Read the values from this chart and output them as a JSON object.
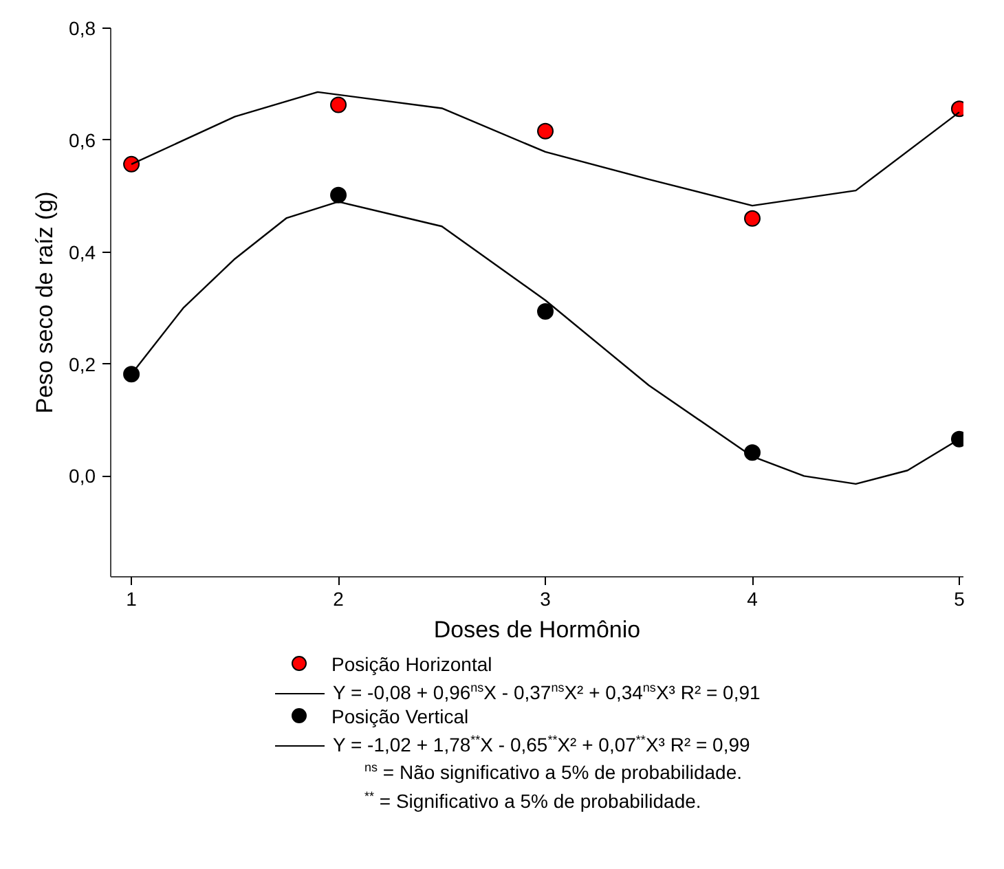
{
  "chart_data": {
    "type": "scatter",
    "xlabel": "Doses de Hormônio",
    "ylabel": "Peso seco de raíz (g)",
    "xlim": [
      0.9,
      5.02
    ],
    "ylim": [
      -0.18,
      0.8
    ],
    "xticks": [
      1,
      2,
      3,
      4,
      5
    ],
    "yticks": [
      {
        "value": 0,
        "label": "0,0"
      },
      {
        "value": 0.2,
        "label": "0,2"
      },
      {
        "value": 0.4,
        "label": "0,4"
      },
      {
        "value": 0.6,
        "label": "0,6"
      },
      {
        "value": 0.8,
        "label": "0,8"
      }
    ],
    "grid": false,
    "legend": "bottom",
    "marker": "circle",
    "series": [
      {
        "name": "Posição Horizontal",
        "color": "#ff0000",
        "x": [
          1,
          2,
          3,
          4,
          5
        ],
        "values": [
          0.557,
          0.663,
          0.616,
          0.46,
          0.656
        ]
      },
      {
        "name": "Y = -0,08 + 0,96$^{ns}$X - 0,37$^{ns}$X² + 0,34$^{ns}$X³  R² = 0,91",
        "type": "line",
        "color": "#000000",
        "marker": "none",
        "line_style": "solid",
        "x": [
          1,
          1.5,
          1.9,
          2.5,
          3,
          3.5,
          4,
          4.5,
          5
        ],
        "values": [
          0.557,
          0.642,
          0.686,
          0.657,
          0.579,
          0.53,
          0.483,
          0.51,
          0.65
        ]
      },
      {
        "name": "Posição Vertical",
        "color": "#000000",
        "x": [
          1,
          2,
          3,
          4,
          5
        ],
        "values": [
          0.182,
          0.502,
          0.294,
          0.042,
          0.066
        ]
      },
      {
        "name": "Y = -1,02 + 1,78$^{**}$X - 0,65$^{**}$X² + 0,07$^{**}$X³  R² = 0,99",
        "type": "line",
        "color": "#000000",
        "marker": "none",
        "line_style": "solid",
        "x": [
          1,
          1.25,
          1.5,
          1.75,
          2,
          2.5,
          3,
          3.5,
          4,
          4.25,
          4.5,
          4.75,
          5
        ],
        "values": [
          0.182,
          0.3,
          0.388,
          0.461,
          0.49,
          0.446,
          0.314,
          0.162,
          0.035,
          0.0,
          -0.014,
          0.01,
          0.066
        ]
      }
    ],
    "annotations": [
      "$^{ns}$ = Não significativo a 5% de probabilidade.",
      "$^{**}$ = Significativo a 5% de probabilidade."
    ]
  }
}
